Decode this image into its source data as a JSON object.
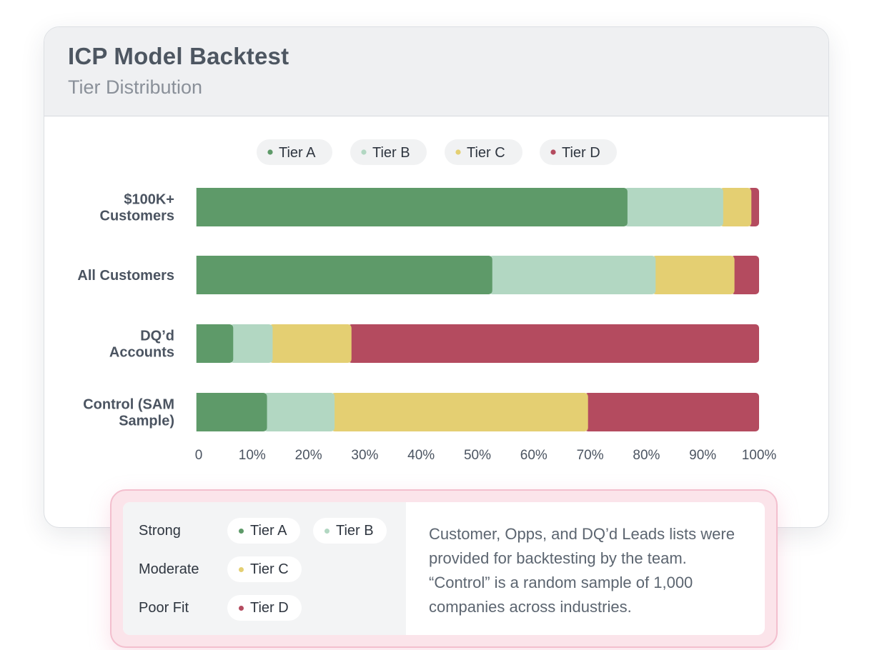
{
  "card": {
    "title": "ICP Model Backtest",
    "subtitle": "Tier Distribution"
  },
  "colors": {
    "tier_a": "#5e9a69",
    "tier_b": "#b2d7c2",
    "tier_c": "#e4cf72",
    "tier_d": "#b44b5f"
  },
  "chart_data": {
    "type": "bar",
    "orientation": "horizontal",
    "stacked": true,
    "title": "Tier Distribution",
    "categories": [
      [
        "$100K+",
        "Customers"
      ],
      [
        "All Customers"
      ],
      [
        "DQ’d",
        "Accounts"
      ],
      [
        "Control (SAM",
        "Sample)"
      ]
    ],
    "series": [
      {
        "name": "Tier A",
        "color": "#5e9a69",
        "values": [
          76,
          52,
          6,
          12
        ]
      },
      {
        "name": "Tier B",
        "color": "#b2d7c2",
        "values": [
          17,
          29,
          7,
          12
        ]
      },
      {
        "name": "Tier C",
        "color": "#e4cf72",
        "values": [
          5,
          14,
          14,
          45
        ]
      },
      {
        "name": "Tier D",
        "color": "#b44b5f",
        "values": [
          2,
          5,
          73,
          31
        ]
      }
    ],
    "xlim": [
      0,
      100
    ],
    "xticks": [
      "0",
      "10%",
      "20%",
      "30%",
      "40%",
      "50%",
      "60%",
      "70%",
      "80%",
      "90%",
      "100%"
    ],
    "legend_position": "top-center",
    "legend": [
      "Tier A",
      "Tier B",
      "Tier C",
      "Tier D"
    ],
    "xlabel": "",
    "ylabel": "",
    "grid": false
  },
  "info": {
    "rows": [
      {
        "label": "Strong",
        "pills": [
          {
            "label": "Tier A",
            "color": "#5e9a69"
          },
          {
            "label": "Tier B",
            "color": "#b2d7c2"
          }
        ]
      },
      {
        "label": "Moderate",
        "pills": [
          {
            "label": "Tier C",
            "color": "#e4cf72"
          }
        ]
      },
      {
        "label": "Poor Fit",
        "pills": [
          {
            "label": "Tier D",
            "color": "#b44b5f"
          }
        ]
      }
    ],
    "description": "Customer, Opps, and DQ’d Leads lists were provided for backtesting by the team. “Control” is a random sample of 1,000 companies across industries."
  }
}
